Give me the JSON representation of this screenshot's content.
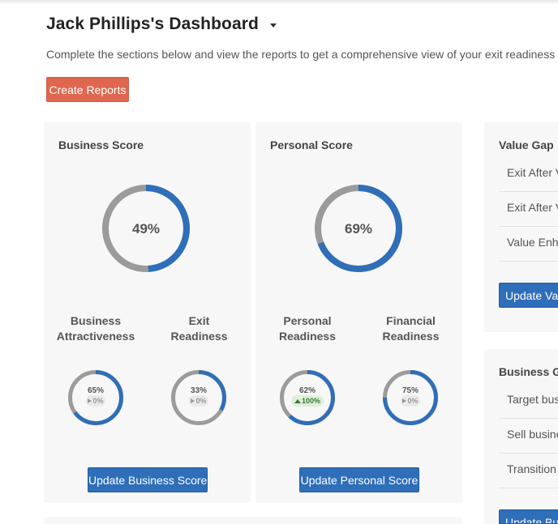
{
  "header": {
    "title": "Jack Phillips's Dashboard",
    "subtitle": "Complete the sections below and view the reports to get a comprehensive view of your exit readiness and",
    "create_reports_label": "Create Reports"
  },
  "colors": {
    "accent_blue": "#2f6eb8",
    "ring_gray": "#9b9b9b",
    "create_button": "#e0674f",
    "positive_change": "#3c763d"
  },
  "business_score": {
    "title": "Business Score",
    "value": 49,
    "value_label": "49%",
    "subscores": [
      {
        "label_line1": "Business",
        "label_line2": "Attractiveness",
        "value": 65,
        "value_label": "65%",
        "change": "0%",
        "trend": "flat"
      },
      {
        "label_line1": "Exit",
        "label_line2": "Readiness",
        "value": 33,
        "value_label": "33%",
        "change": "0%",
        "trend": "flat"
      }
    ],
    "update_label": "Update Business Score"
  },
  "personal_score": {
    "title": "Personal Score",
    "value": 69,
    "value_label": "69%",
    "subscores": [
      {
        "label_line1": "Personal",
        "label_line2": "Readiness",
        "value": 62,
        "value_label": "62%",
        "change": "100%",
        "trend": "up"
      },
      {
        "label_line1": "Financial",
        "label_line2": "Readiness",
        "value": 75,
        "value_label": "75%",
        "change": "0%",
        "trend": "flat"
      }
    ],
    "update_label": "Update Personal Score"
  },
  "value_gap": {
    "title": "Value Gap",
    "items": [
      "Exit After V",
      "Exit After V",
      "Value Enha"
    ],
    "update_label": "Update Valu"
  },
  "business_goals": {
    "title": "Business Go",
    "items": [
      "Target bus",
      "Sell busine",
      "Transition"
    ],
    "update_label": "Update Bus"
  }
}
